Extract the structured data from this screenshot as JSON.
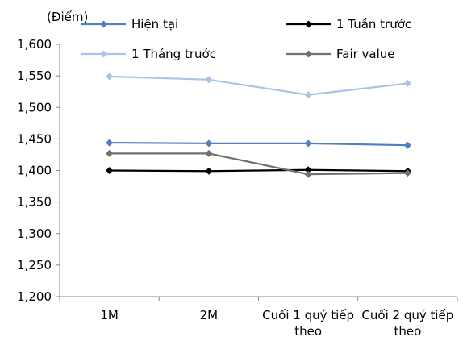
{
  "chart_data": {
    "type": "line",
    "ylabel": "(Điểm)",
    "ylim": [
      1200,
      1600
    ],
    "ytick_step": 50,
    "ytick_labels": [
      "1,200",
      "1,250",
      "1,300",
      "1,350",
      "1,400",
      "1,450",
      "1,500",
      "1,550",
      "1,600"
    ],
    "categories": [
      "1M",
      "2M",
      "Cuối 1 quý tiếp theo",
      "Cuối 2 quý tiếp theo"
    ],
    "category_lines": [
      [
        "1M"
      ],
      [
        "2M"
      ],
      [
        "Cuối 1 quý tiếp",
        "theo"
      ],
      [
        "Cuối 2 quý tiếp",
        "theo"
      ]
    ],
    "grid": false,
    "legend_position": "top",
    "series": [
      {
        "name": "Hiện tại",
        "color": "#4F81BD",
        "marker": "diamond",
        "values": [
          1444,
          1443,
          1443,
          1440
        ]
      },
      {
        "name": "1 Tuần trước",
        "color": "#000000",
        "marker": "diamond",
        "values": [
          1400,
          1399,
          1401,
          1399
        ]
      },
      {
        "name": "1 Tháng trước",
        "color": "#A9C4E6",
        "marker": "diamond",
        "values": [
          1549,
          1544,
          1520,
          1538
        ]
      },
      {
        "name": "Fair value",
        "color": "#707070",
        "marker": "diamond",
        "values": [
          1427,
          1427,
          1394,
          1396
        ]
      }
    ]
  }
}
